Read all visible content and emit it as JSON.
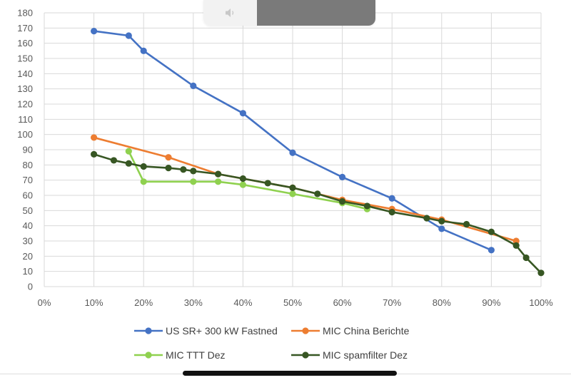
{
  "chart_data": {
    "type": "line",
    "title": "",
    "xlabel": "",
    "ylabel": "",
    "xlim": [
      0,
      100
    ],
    "ylim": [
      0,
      180
    ],
    "x_ticks": [
      "0%",
      "10%",
      "20%",
      "30%",
      "40%",
      "50%",
      "60%",
      "70%",
      "80%",
      "90%",
      "100%"
    ],
    "y_ticks": [
      "0",
      "10",
      "20",
      "30",
      "40",
      "50",
      "60",
      "70",
      "80",
      "90",
      "100",
      "110",
      "120",
      "130",
      "140",
      "150",
      "160",
      "170",
      "180"
    ],
    "grid": true,
    "legend_position": "bottom",
    "series": [
      {
        "name": "US SR+ 300 kW Fastned",
        "color": "#4472c4",
        "x": [
          10,
          17,
          20,
          30,
          40,
          50,
          60,
          70,
          80,
          90
        ],
        "y": [
          168,
          165,
          155,
          132,
          114,
          88,
          72,
          58,
          38,
          24
        ]
      },
      {
        "name": "MIC China Berichte",
        "color": "#ed7d31",
        "x": [
          10,
          25,
          35,
          50,
          60,
          70,
          80,
          95
        ],
        "y": [
          98,
          85,
          74,
          65,
          57,
          51,
          44,
          30
        ]
      },
      {
        "name": "MIC TTT Dez",
        "color": "#8fd14f",
        "x": [
          17,
          20,
          30,
          35,
          40,
          50,
          60,
          65
        ],
        "y": [
          89,
          69,
          69,
          69,
          67,
          61,
          55,
          51
        ]
      },
      {
        "name": "MIC spamfilter Dez",
        "color": "#375623",
        "x": [
          10,
          14,
          17,
          20,
          25,
          28,
          30,
          35,
          40,
          45,
          50,
          55,
          60,
          65,
          70,
          77,
          80,
          85,
          90,
          95,
          97,
          100
        ],
        "y": [
          87,
          83,
          81,
          79,
          78,
          77,
          76,
          74,
          71,
          68,
          65,
          61,
          56,
          53,
          49,
          45,
          43,
          41,
          36,
          27,
          19,
          9
        ]
      }
    ]
  },
  "ui": {
    "volume_icon": "speaker-icon"
  }
}
